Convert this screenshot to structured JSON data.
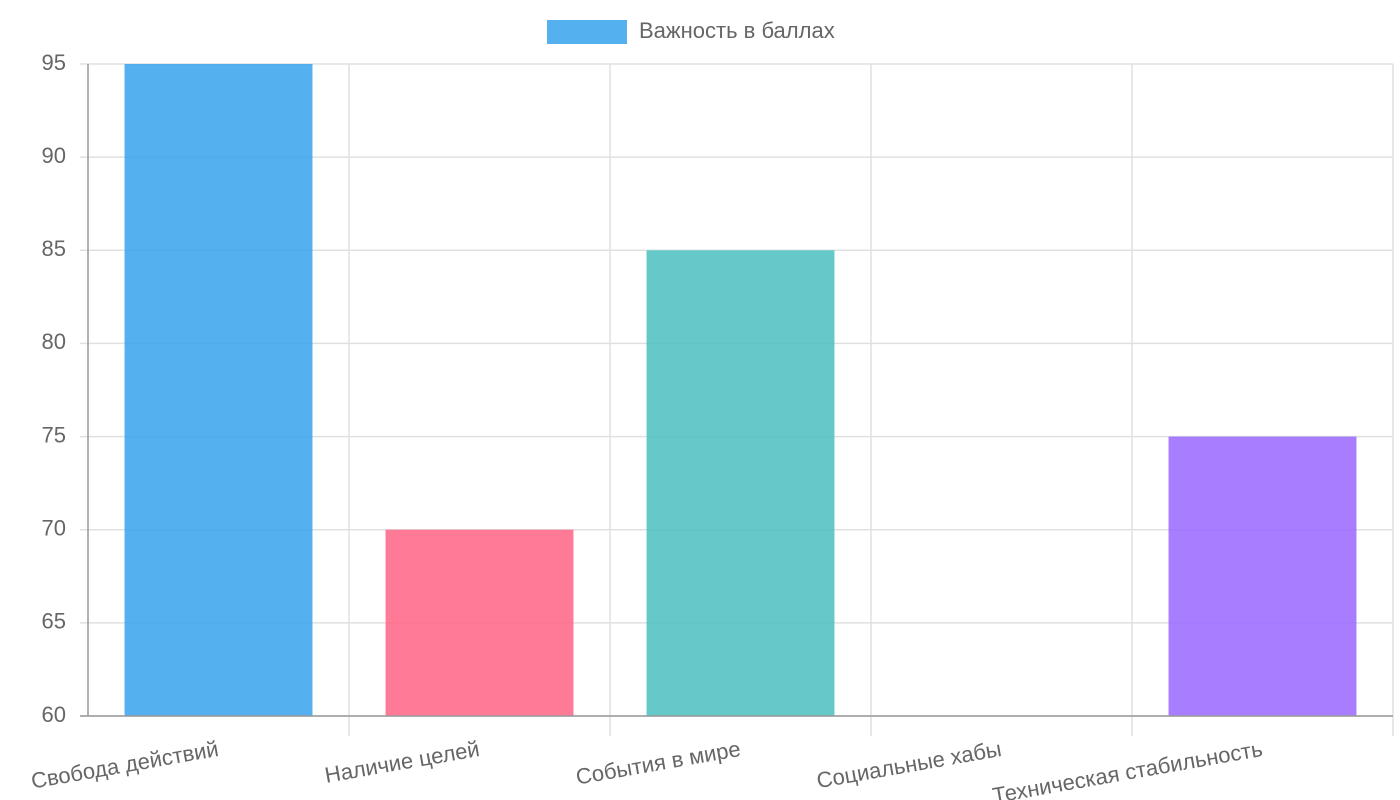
{
  "chart_data": {
    "type": "bar",
    "categories": [
      "Свобода действий",
      "Наличие целей",
      "События в мире",
      "Социальные хабы",
      "Техническая стабильность"
    ],
    "series": [
      {
        "name": "Важность в баллах",
        "colors": [
          "rgba(54,162,235,0.85)",
          "rgba(255,99,132,0.85)",
          "rgba(75,192,192,0.85)",
          null,
          "rgba(153,102,255,0.85)"
        ],
        "values": [
          95,
          70,
          85,
          60,
          75
        ]
      }
    ],
    "ylim": [
      60,
      95
    ],
    "yticks": [
      60,
      65,
      70,
      75,
      80,
      85,
      90,
      95
    ],
    "grid": true,
    "legend": "top"
  }
}
